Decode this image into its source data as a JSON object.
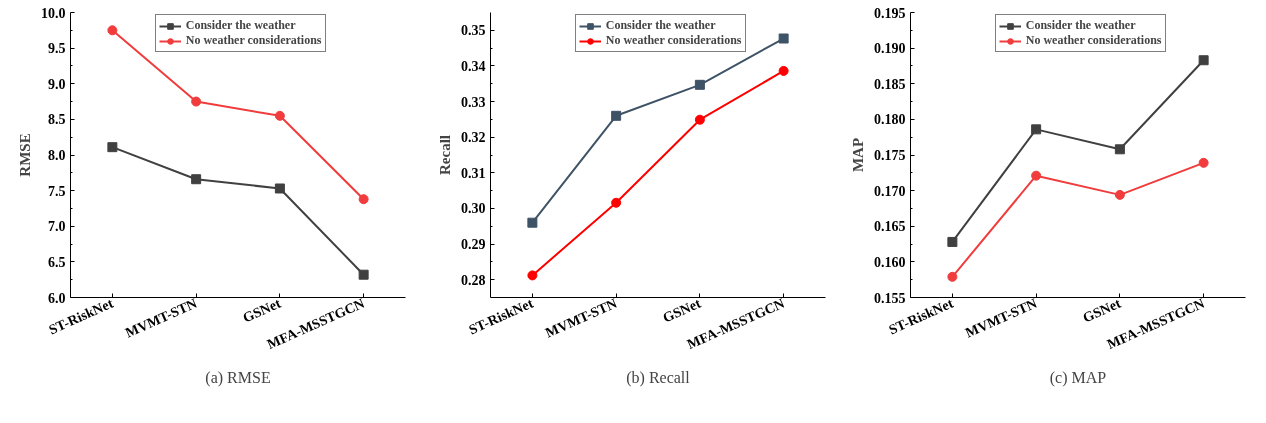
{
  "chart_data": [
    {
      "type": "line",
      "ylabel": "RMSE",
      "categories": [
        "ST-RiskNet",
        "MVMT-STN",
        "GSNet",
        "MFA-MSSTGCN"
      ],
      "ylim": [
        6.0,
        10.0
      ],
      "yticks": [
        {
          "value": 6,
          "label": "6.0"
        },
        {
          "value": 6.5,
          "label": "6.5"
        },
        {
          "value": 7,
          "label": "7.0"
        },
        {
          "value": 7.5,
          "label": "7.5"
        },
        {
          "value": 8,
          "label": "8.0"
        },
        {
          "value": 8.5,
          "label": "8.5"
        },
        {
          "value": 9,
          "label": "9.0"
        },
        {
          "value": 9.5,
          "label": "9.5"
        },
        {
          "value": 10,
          "label": "10.0"
        }
      ],
      "legend": "top right",
      "annotations": [
        "(a) RMSE"
      ],
      "series": [
        {
          "name": "Consider the weather",
          "color": "#404040",
          "marker": "square",
          "values": [
            8.11,
            7.66,
            7.53,
            6.32
          ]
        },
        {
          "name": "No weather considerations",
          "color": "#f03c3c",
          "marker": "circle",
          "values": [
            9.75,
            8.75,
            8.55,
            7.38
          ]
        }
      ]
    },
    {
      "type": "line",
      "ylabel": "Recall",
      "categories": [
        "ST-RiskNet",
        "MVMT-STN",
        "GSNet",
        "MFA-MSSTGCN"
      ],
      "ylim": [
        0.275,
        0.355
      ],
      "yticks": [
        {
          "value": 0.28,
          "label": "0.28"
        },
        {
          "value": 0.29,
          "label": "0.29"
        },
        {
          "value": 0.3,
          "label": "0.30"
        },
        {
          "value": 0.31,
          "label": "0.31"
        },
        {
          "value": 0.32,
          "label": "0.32"
        },
        {
          "value": 0.33,
          "label": "0.33"
        },
        {
          "value": 0.34,
          "label": "0.34"
        },
        {
          "value": 0.35,
          "label": "0.35"
        }
      ],
      "legend": "top right",
      "annotations": [
        "(b) Recall"
      ],
      "series": [
        {
          "name": "Consider the weather",
          "color": "#3f5366",
          "marker": "square",
          "values": [
            0.296,
            0.326,
            0.3347,
            0.3477
          ]
        },
        {
          "name": "No weather considerations",
          "color": "#ff0000",
          "marker": "circle",
          "values": [
            0.2812,
            0.3016,
            0.3249,
            0.3386
          ]
        }
      ]
    },
    {
      "type": "line",
      "ylabel": "MAP",
      "categories": [
        "ST-RiskNet",
        "MVMT-STN",
        "GSNet",
        "MFA-MSSTGCN"
      ],
      "ylim": [
        0.155,
        0.195
      ],
      "yticks": [
        {
          "value": 0.155,
          "label": "0.155"
        },
        {
          "value": 0.16,
          "label": "0.160"
        },
        {
          "value": 0.165,
          "label": "0.165"
        },
        {
          "value": 0.17,
          "label": "0.170"
        },
        {
          "value": 0.175,
          "label": "0.175"
        },
        {
          "value": 0.18,
          "label": "0.180"
        },
        {
          "value": 0.185,
          "label": "0.185"
        },
        {
          "value": 0.19,
          "label": "0.190"
        },
        {
          "value": 0.195,
          "label": "0.195"
        }
      ],
      "legend": "top right",
      "annotations": [
        "(c) MAP"
      ],
      "series": [
        {
          "name": "Consider the weather",
          "color": "#404040",
          "marker": "square",
          "values": [
            0.1628,
            0.1786,
            0.1758,
            0.1883
          ]
        },
        {
          "name": "No weather considerations",
          "color": "#f03c3c",
          "marker": "circle",
          "values": [
            0.1579,
            0.1721,
            0.1694,
            0.1739
          ]
        }
      ]
    }
  ]
}
